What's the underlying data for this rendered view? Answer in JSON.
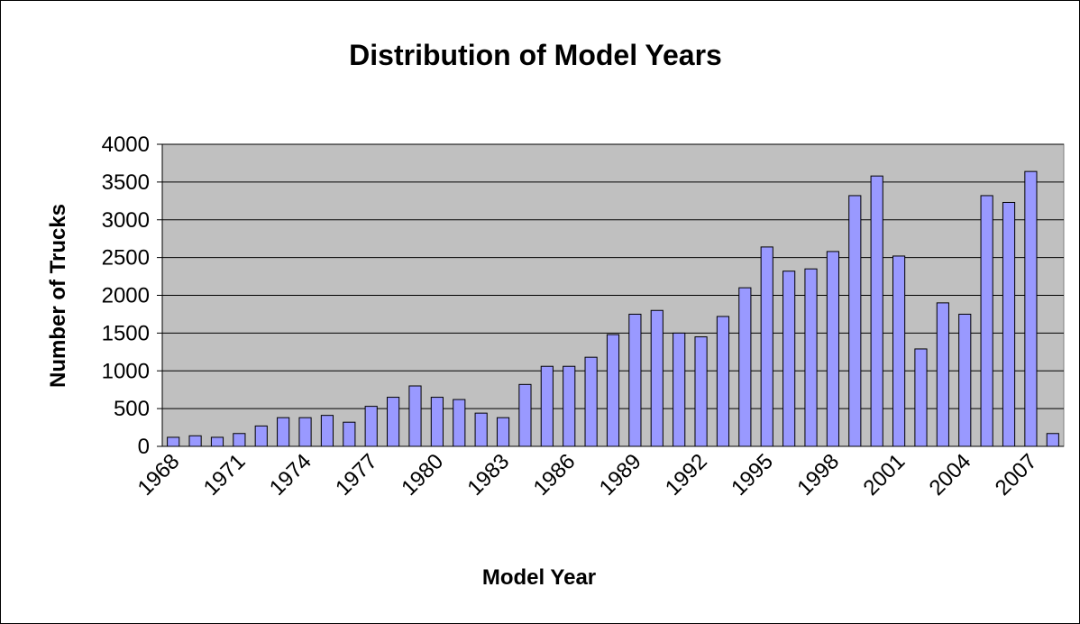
{
  "chart_data": {
    "type": "bar",
    "title": "Distribution of Model Years",
    "x_label": "Model Year",
    "y_label": "Number of Trucks",
    "categories": [
      "1968",
      null,
      null,
      "1971",
      null,
      null,
      "1974",
      null,
      null,
      "1977",
      null,
      null,
      "1980",
      null,
      null,
      "1983",
      null,
      null,
      "1986",
      null,
      null,
      "1989",
      null,
      null,
      "1992",
      null,
      null,
      "1995",
      null,
      null,
      "1998",
      null,
      null,
      "2001",
      null,
      null,
      "2004",
      null,
      null,
      "2007",
      null
    ],
    "values": [
      120,
      140,
      120,
      170,
      270,
      380,
      380,
      410,
      320,
      530,
      650,
      800,
      650,
      620,
      440,
      380,
      820,
      1060,
      1060,
      1180,
      1480,
      1750,
      1800,
      1500,
      1450,
      1720,
      2100,
      2640,
      2320,
      2350,
      2580,
      3320,
      3580,
      2520,
      1290,
      1900,
      1750,
      3320,
      3230,
      3640,
      170
    ],
    "color": "#9999ff",
    "ylim": [
      0,
      4000
    ],
    "yticks": [
      0,
      500,
      1000,
      1500,
      2000,
      2500,
      3000,
      3500,
      4000
    ],
    "grid": true
  }
}
